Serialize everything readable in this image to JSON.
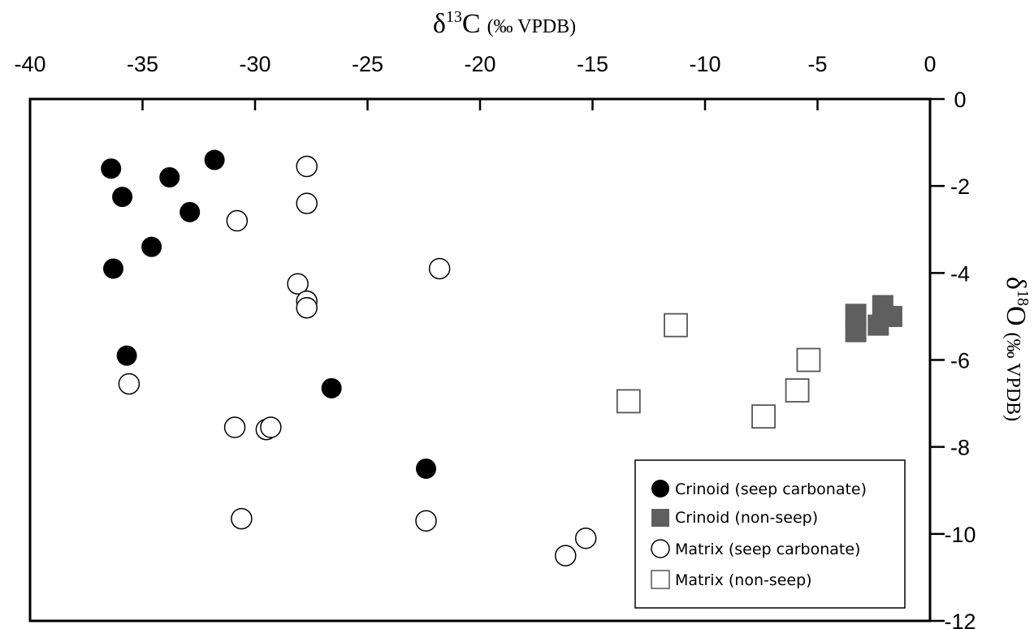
{
  "chart_data": {
    "type": "scatter",
    "title": "",
    "xlabel": {
      "prefix": "δ",
      "sup": "13",
      "element": "C",
      "unit": "(‰ VPDB)"
    },
    "ylabel": {
      "prefix": "δ",
      "sup": "18",
      "element": "O",
      "unit": "(‰ VPDB)"
    },
    "xlim": [
      -40,
      0
    ],
    "ylim": [
      -12,
      0
    ],
    "x_ticks": [
      -40,
      -35,
      -30,
      -25,
      -20,
      -15,
      -10,
      -5,
      0
    ],
    "y_ticks": [
      0,
      -2,
      -4,
      -6,
      -8,
      -10,
      -12
    ],
    "x_axis_position": "top",
    "y_axis_position": "right",
    "grid": false,
    "legend_position": "bottom-right",
    "series": [
      {
        "name": "Crinoid (seep carbonate)",
        "marker": "filled-circle",
        "color": "#000000",
        "points": [
          [
            -36.4,
            -1.6
          ],
          [
            -31.8,
            -1.4
          ],
          [
            -33.8,
            -1.8
          ],
          [
            -35.9,
            -2.25
          ],
          [
            -32.9,
            -2.6
          ],
          [
            -34.6,
            -3.4
          ],
          [
            -36.3,
            -3.9
          ],
          [
            -35.7,
            -5.9
          ],
          [
            -26.6,
            -6.65
          ],
          [
            -22.4,
            -8.5
          ]
        ]
      },
      {
        "name": "Crinoid (non-seep)",
        "marker": "filled-square",
        "color": "#5f5f5f",
        "points": [
          [
            -2.1,
            -4.75
          ],
          [
            -3.3,
            -4.95
          ],
          [
            -2.0,
            -5.0
          ],
          [
            -2.3,
            -5.2
          ],
          [
            -3.3,
            -5.35
          ],
          [
            -1.7,
            -5.0
          ]
        ]
      },
      {
        "name": "Matrix (seep carbonate)",
        "marker": "open-circle",
        "color": "#000000",
        "points": [
          [
            -27.7,
            -1.55
          ],
          [
            -27.7,
            -2.4
          ],
          [
            -30.8,
            -2.8
          ],
          [
            -21.8,
            -3.9
          ],
          [
            -28.1,
            -4.25
          ],
          [
            -27.7,
            -4.65
          ],
          [
            -27.7,
            -4.8
          ],
          [
            -35.6,
            -6.55
          ],
          [
            -30.9,
            -7.55
          ],
          [
            -29.5,
            -7.6
          ],
          [
            -29.3,
            -7.55
          ],
          [
            -30.6,
            -9.65
          ],
          [
            -22.4,
            -9.7
          ],
          [
            -15.3,
            -10.1
          ],
          [
            -16.2,
            -10.5
          ]
        ]
      },
      {
        "name": "Matrix (non-seep)",
        "marker": "open-square",
        "color": "#555555",
        "points": [
          [
            -11.3,
            -5.2
          ],
          [
            -13.4,
            -6.95
          ],
          [
            -5.4,
            -6.0
          ],
          [
            -5.9,
            -6.7
          ],
          [
            -7.4,
            -7.3
          ]
        ]
      }
    ]
  }
}
